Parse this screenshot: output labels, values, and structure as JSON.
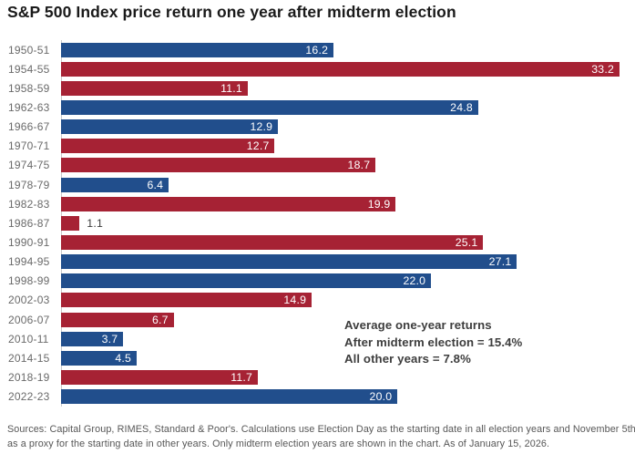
{
  "title": "S&P 500 Index price return one year after midterm election",
  "chart_data": {
    "type": "bar",
    "orientation": "horizontal",
    "title": "S&P 500 Index price return one year after midterm election",
    "categories": [
      "1950-51",
      "1954-55",
      "1958-59",
      "1962-63",
      "1966-67",
      "1970-71",
      "1974-75",
      "1978-79",
      "1982-83",
      "1986-87",
      "1990-91",
      "1994-95",
      "1998-99",
      "2002-03",
      "2006-07",
      "2010-11",
      "2014-15",
      "2018-19",
      "2022-23"
    ],
    "values": [
      16.2,
      33.2,
      11.1,
      24.8,
      12.9,
      12.7,
      18.7,
      6.4,
      19.9,
      1.1,
      25.1,
      27.1,
      22.0,
      14.9,
      6.7,
      3.7,
      4.5,
      11.7,
      20.0
    ],
    "bar_parties": [
      "blue",
      "red",
      "red",
      "blue",
      "blue",
      "red",
      "red",
      "blue",
      "red",
      "red",
      "red",
      "blue",
      "blue",
      "red",
      "red",
      "blue",
      "blue",
      "red",
      "blue"
    ],
    "colors": {
      "blue": "#214E8C",
      "red": "#A62234"
    },
    "xlim": [
      0,
      33.2
    ],
    "xlabel": "",
    "ylabel": "",
    "grid": false,
    "legend_position": "none",
    "value_label_format": "one-decimal",
    "annotation": {
      "lines": [
        "Average one-year returns",
        "After midterm election = 15.4%",
        "All other years = 7.8%"
      ]
    }
  },
  "footer": {
    "lines": [
      "Sources: Capital Group, RIMES, Standard & Poor's. Calculations use Election Day as the starting date in all election years and November 5th",
      "as a proxy for the starting date in other years. Only midterm election years are shown in the chart. As of January 15, 2026."
    ]
  }
}
